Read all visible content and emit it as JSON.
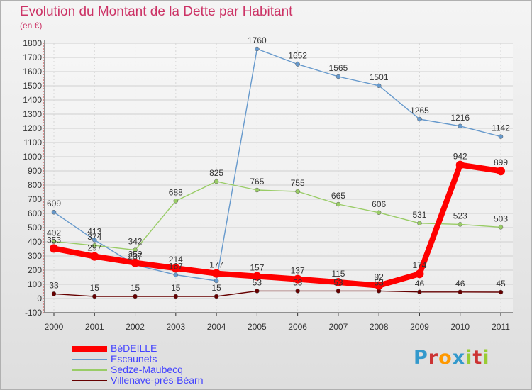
{
  "chart_data": {
    "type": "line",
    "title": "Evolution du Montant de la Dette par Habitant",
    "subtitle": "(en €)",
    "x": [
      "2000",
      "2001",
      "2002",
      "2003",
      "2004",
      "2005",
      "2006",
      "2007",
      "2008",
      "2009",
      "2010",
      "2011"
    ],
    "ylim": [
      -100,
      1800
    ],
    "yticks": [
      -100,
      0,
      100,
      200,
      300,
      400,
      500,
      600,
      700,
      800,
      900,
      1000,
      1100,
      1200,
      1300,
      1400,
      1500,
      1600,
      1700,
      1800
    ],
    "grid": true,
    "legend_position": "bottom-left",
    "series": [
      {
        "name": "BéDEILLE",
        "color": "#ff0000",
        "values": [
          353,
          297,
          252,
          214,
          177,
          157,
          137,
          115,
          92,
          174,
          942,
          899
        ],
        "labels": [
          "353",
          "297",
          "252",
          "214",
          "177",
          "157",
          "137",
          "115",
          "92",
          "174",
          "942",
          "899"
        ]
      },
      {
        "name": "Escaunets",
        "color": "#6699cc",
        "values": [
          609,
          413,
          237,
          167,
          125,
          1760,
          1652,
          1565,
          1501,
          1265,
          1216,
          1142
        ],
        "labels": [
          "609",
          "413",
          "237",
          "167",
          "",
          "1760",
          "1652",
          "1565",
          "1501",
          "1265",
          "1216",
          "1142"
        ]
      },
      {
        "name": "Sedze-Maubecq",
        "color": "#99cc66",
        "values": [
          402,
          374,
          342,
          688,
          825,
          765,
          755,
          665,
          606,
          531,
          523,
          503
        ],
        "labels": [
          "402",
          "374",
          "342",
          "688",
          "825",
          "765",
          "755",
          "665",
          "606",
          "531",
          "523",
          "503"
        ]
      },
      {
        "name": "Villenave-près-Béarn",
        "color": "#660000",
        "values": [
          33,
          15,
          15,
          15,
          15,
          53,
          53,
          53,
          53,
          46,
          46,
          45
        ],
        "labels": [
          "33",
          "15",
          "15",
          "15",
          "15",
          "53",
          "53",
          "53",
          "53",
          "46",
          "46",
          "45"
        ]
      }
    ]
  },
  "brand": {
    "letters": [
      "P",
      "r",
      "o",
      "x",
      "i",
      "t",
      "i"
    ],
    "colors": [
      "#3399cc",
      "#cc3333",
      "#ff9900",
      "#3399cc",
      "#99cc33",
      "#cc3333",
      "#99cc33"
    ]
  }
}
